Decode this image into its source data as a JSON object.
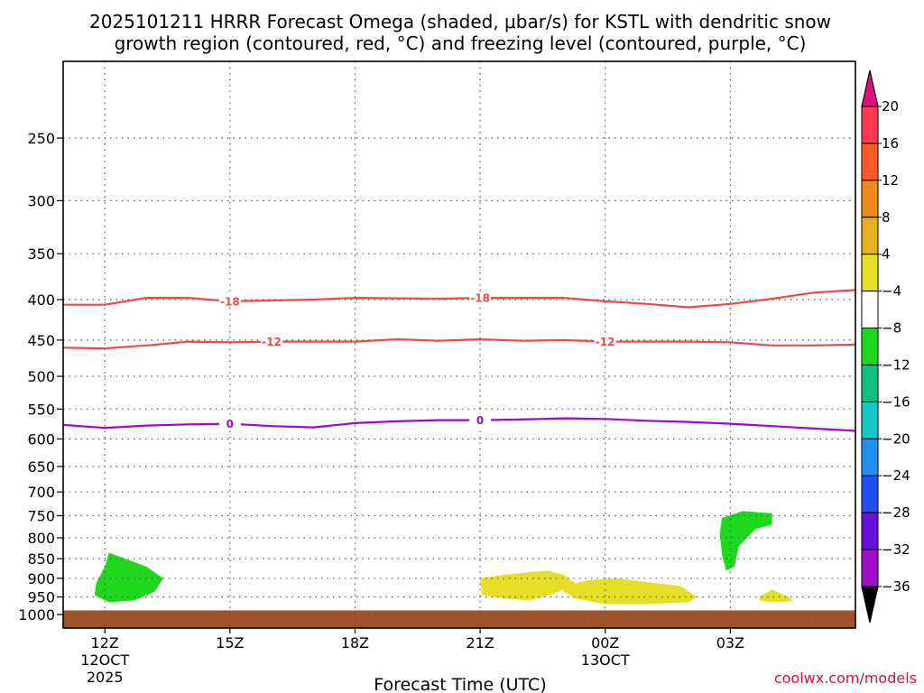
{
  "title": {
    "line1": "2025101211 HRRR Forecast Omega (shaded, μbar/s) for KSTL with dendritic snow",
    "line2": "growth region (contoured, red, °C) and freezing level (contoured, purple, °C)"
  },
  "xlabel": "Forecast Time (UTC)",
  "credit": "coolwx.com/models",
  "chart_data": {
    "type": "heatmap",
    "x_range_hours": [
      -1.0,
      18.0
    ],
    "y_range_hpa": [
      200,
      1040
    ],
    "y_scale": "log-pressure",
    "grid": true,
    "x_ticks": [
      {
        "hour": 0,
        "label": "12Z",
        "sub1": "12OCT",
        "sub2": "2025"
      },
      {
        "hour": 3,
        "label": "15Z",
        "sub1": "",
        "sub2": ""
      },
      {
        "hour": 6,
        "label": "18Z",
        "sub1": "",
        "sub2": ""
      },
      {
        "hour": 9,
        "label": "21Z",
        "sub1": "",
        "sub2": ""
      },
      {
        "hour": 12,
        "label": "00Z",
        "sub1": "13OCT",
        "sub2": ""
      },
      {
        "hour": 15,
        "label": "03Z",
        "sub1": "",
        "sub2": ""
      }
    ],
    "y_ticks": [
      250,
      300,
      350,
      400,
      450,
      500,
      550,
      600,
      650,
      700,
      750,
      800,
      850,
      900,
      950,
      1000
    ],
    "ground_pressure_hpa": 988,
    "ground_color": "#a0522d",
    "colorbar": {
      "labels": [
        "20",
        "16",
        "12",
        "8",
        "4",
        "−4",
        "−8",
        "−12",
        "−16",
        "−20",
        "−24",
        "−28",
        "−32",
        "−36"
      ],
      "bands": [
        "#ff3a4f",
        "#ff5a2a",
        "#f08a1e",
        "#e8b020",
        "#e7de2a",
        "#ffffff",
        "#1ed71e",
        "#10c080",
        "#18c8c8",
        "#2090f0",
        "#2050f0",
        "#6a10d8",
        "#a010c8",
        "#b0b0b0"
      ],
      "top_arrow_color": "#e0107a",
      "bottom_arrow_color": "#000000"
    },
    "omega_regions": [
      {
        "name": "omega-region-1",
        "color": "#1ed71e",
        "points": [
          [
            -0.2,
            910
          ],
          [
            0.0,
            870
          ],
          [
            0.1,
            835
          ],
          [
            0.35,
            845
          ],
          [
            1.0,
            870
          ],
          [
            1.4,
            900
          ],
          [
            1.2,
            935
          ],
          [
            0.7,
            960
          ],
          [
            0.1,
            965
          ],
          [
            -0.25,
            945
          ]
        ]
      },
      {
        "name": "omega-region-2",
        "color": "#e7de2a",
        "points": [
          [
            9.0,
            900
          ],
          [
            9.6,
            890
          ],
          [
            10.6,
            880
          ],
          [
            11.0,
            890
          ],
          [
            11.3,
            915
          ],
          [
            10.8,
            940
          ],
          [
            10.2,
            960
          ],
          [
            9.6,
            955
          ],
          [
            9.05,
            945
          ]
        ]
      },
      {
        "name": "omega-region-3",
        "color": "#e7de2a",
        "points": [
          [
            11.0,
            920
          ],
          [
            11.6,
            905
          ],
          [
            12.3,
            900
          ],
          [
            13.0,
            910
          ],
          [
            13.8,
            920
          ],
          [
            14.2,
            950
          ],
          [
            14.0,
            965
          ],
          [
            13.0,
            970
          ],
          [
            12.0,
            970
          ],
          [
            11.3,
            955
          ],
          [
            11.0,
            935
          ]
        ]
      },
      {
        "name": "omega-region-4",
        "color": "#1ed71e",
        "points": [
          [
            14.8,
            755
          ],
          [
            15.3,
            740
          ],
          [
            16.0,
            745
          ],
          [
            16.0,
            770
          ],
          [
            15.6,
            780
          ],
          [
            15.2,
            820
          ],
          [
            15.1,
            870
          ],
          [
            14.9,
            880
          ],
          [
            14.8,
            840
          ],
          [
            14.75,
            790
          ]
        ]
      },
      {
        "name": "omega-region-5",
        "color": "#e7de2a",
        "points": [
          [
            15.7,
            950
          ],
          [
            16.0,
            930
          ],
          [
            16.4,
            950
          ],
          [
            16.5,
            962
          ],
          [
            16.0,
            965
          ],
          [
            15.7,
            960
          ]
        ]
      }
    ],
    "contours": [
      {
        "name": "contour-minus-18",
        "color": "#f04848",
        "label": "-18",
        "label_points": [
          [
            3.0,
            402
          ],
          [
            9.0,
            398
          ]
        ],
        "points": [
          [
            -1.0,
            406
          ],
          [
            0.0,
            406
          ],
          [
            1.0,
            398
          ],
          [
            2.0,
            398
          ],
          [
            3.0,
            402
          ],
          [
            5.0,
            400
          ],
          [
            6.0,
            398
          ],
          [
            8.0,
            399
          ],
          [
            9.0,
            398
          ],
          [
            10.0,
            398
          ],
          [
            11.0,
            398
          ],
          [
            12.0,
            402
          ],
          [
            13.0,
            405
          ],
          [
            14.0,
            409
          ],
          [
            15.0,
            405
          ],
          [
            16.0,
            399
          ],
          [
            17.0,
            392
          ],
          [
            18.0,
            389
          ]
        ]
      },
      {
        "name": "contour-minus-12",
        "color": "#f04848",
        "label": "-12",
        "label_points": [
          [
            4.0,
            452
          ],
          [
            12.0,
            452
          ]
        ],
        "points": [
          [
            -1.0,
            460
          ],
          [
            0.0,
            461
          ],
          [
            1.0,
            457
          ],
          [
            2.0,
            452
          ],
          [
            3.0,
            453
          ],
          [
            4.0,
            452
          ],
          [
            6.0,
            452
          ],
          [
            7.0,
            449
          ],
          [
            8.0,
            451
          ],
          [
            9.0,
            449
          ],
          [
            10.0,
            451
          ],
          [
            11.0,
            450
          ],
          [
            12.0,
            452
          ],
          [
            13.0,
            452
          ],
          [
            14.0,
            452
          ],
          [
            15.0,
            453
          ],
          [
            16.0,
            457
          ],
          [
            17.0,
            457
          ],
          [
            18.0,
            456
          ]
        ]
      },
      {
        "name": "contour-zero",
        "color": "#9a0ad0",
        "label": "0",
        "label_points": [
          [
            3.0,
            574
          ],
          [
            9.0,
            568
          ]
        ],
        "points": [
          [
            -1.0,
            576
          ],
          [
            0.0,
            581
          ],
          [
            1.0,
            577
          ],
          [
            2.0,
            575
          ],
          [
            3.0,
            574
          ],
          [
            4.0,
            578
          ],
          [
            5.0,
            580
          ],
          [
            6.0,
            573
          ],
          [
            7.0,
            570
          ],
          [
            8.0,
            568
          ],
          [
            9.0,
            568
          ],
          [
            10.0,
            567
          ],
          [
            11.0,
            565
          ],
          [
            12.0,
            566
          ],
          [
            13.0,
            569
          ],
          [
            14.0,
            571
          ],
          [
            15.0,
            574
          ],
          [
            16.0,
            578
          ],
          [
            17.0,
            582
          ],
          [
            18.0,
            586
          ]
        ]
      }
    ]
  }
}
